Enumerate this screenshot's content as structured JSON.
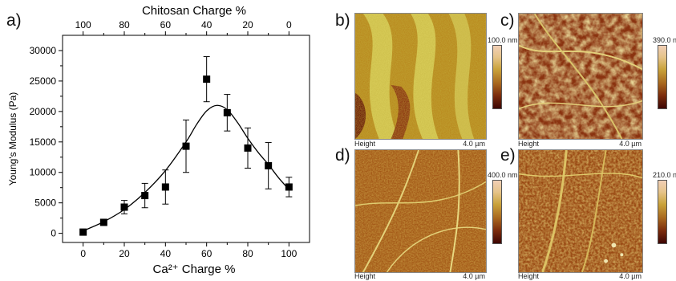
{
  "chart_data": {
    "type": "scatter",
    "panel_label": "a)",
    "xlabel": "Ca²⁺ Charge %",
    "top_xlabel": "Chitosan Charge %",
    "ylabel": "Young's Modulus (Pa)",
    "xlim": [
      -10,
      110
    ],
    "ylim": [
      -1500,
      32500
    ],
    "x_ticks": [
      0,
      20,
      40,
      60,
      80,
      100
    ],
    "x_tick_labels": [
      "0",
      "20",
      "40",
      "60",
      "80",
      "100"
    ],
    "top_ticks": [
      0,
      20,
      40,
      60,
      80,
      100
    ],
    "top_tick_labels": [
      "100",
      "80",
      "60",
      "40",
      "20",
      "0"
    ],
    "y_ticks": [
      0,
      5000,
      10000,
      15000,
      20000,
      25000,
      30000
    ],
    "y_tick_labels": [
      "0",
      "5000",
      "10000",
      "15000",
      "20000",
      "25000",
      "30000"
    ],
    "points": [
      {
        "x": 0,
        "y": 200,
        "err": 0
      },
      {
        "x": 10,
        "y": 1800,
        "err": 0
      },
      {
        "x": 20,
        "y": 4300,
        "err": 1100
      },
      {
        "x": 30,
        "y": 6200,
        "err": 2000
      },
      {
        "x": 40,
        "y": 7600,
        "err": 2800
      },
      {
        "x": 50,
        "y": 14300,
        "err": 4300
      },
      {
        "x": 60,
        "y": 25300,
        "err": 3700
      },
      {
        "x": 70,
        "y": 19800,
        "err": 3000
      },
      {
        "x": 80,
        "y": 14000,
        "err": 3300
      },
      {
        "x": 90,
        "y": 11100,
        "err": 3800
      },
      {
        "x": 100,
        "y": 7600,
        "err": 1600
      }
    ],
    "fit_curve": [
      [
        0,
        400
      ],
      [
        10,
        1900
      ],
      [
        20,
        3900
      ],
      [
        30,
        6700
      ],
      [
        40,
        10300
      ],
      [
        50,
        15000
      ],
      [
        55,
        17800
      ],
      [
        60,
        20100
      ],
      [
        65,
        21000
      ],
      [
        70,
        20300
      ],
      [
        75,
        18200
      ],
      [
        80,
        15600
      ],
      [
        85,
        13300
      ],
      [
        90,
        11300
      ],
      [
        95,
        9100
      ],
      [
        100,
        7200
      ]
    ],
    "marker_color": "#000000",
    "line_color": "#000000"
  },
  "afm_panels": [
    {
      "label": "b)",
      "caption_left": "Height",
      "caption_right": "4.0 µm",
      "scale_label": "100.0 nm"
    },
    {
      "label": "c)",
      "caption_left": "Height",
      "caption_right": "4.0 µm",
      "scale_label": "390.0 nm"
    },
    {
      "label": "d)",
      "caption_left": "Height",
      "caption_right": "4.0 µm",
      "scale_label": "400.0 nm"
    },
    {
      "label": "e)",
      "caption_left": "Height",
      "caption_right": "4.0 µm",
      "scale_label": "210.0 nm"
    }
  ]
}
